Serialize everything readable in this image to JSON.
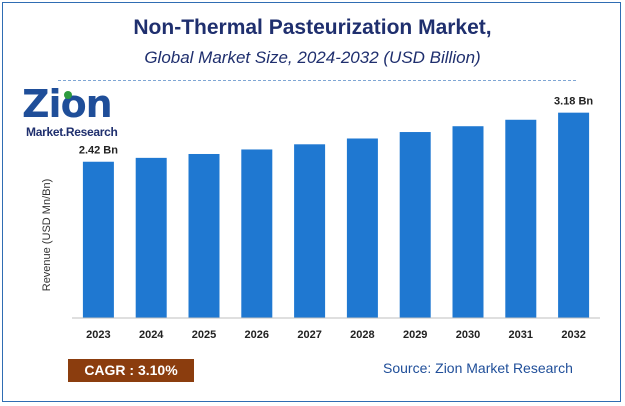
{
  "header": {
    "title": "Non-Thermal Pasteurization Market,",
    "subtitle": "Global Market Size, 2024-2032 (USD Billion)"
  },
  "logo": {
    "name": "Zion",
    "tagline": "Market.Research"
  },
  "footer": {
    "cagr": "CAGR :  3.10%",
    "source": "Source: Zion Market Research"
  },
  "colors": {
    "bar": "#1f78d1",
    "title": "#1f2f6e",
    "cagr_bg": "#8b3d0e"
  },
  "chart_data": {
    "type": "bar",
    "categories": [
      "2023",
      "2024",
      "2025",
      "2026",
      "2027",
      "2028",
      "2029",
      "2030",
      "2031",
      "2032"
    ],
    "values": [
      2.42,
      2.48,
      2.54,
      2.61,
      2.69,
      2.78,
      2.88,
      2.97,
      3.07,
      3.18
    ],
    "data_labels": [
      {
        "index": 0,
        "text": "2.42 Bn"
      },
      {
        "index": 9,
        "text": "3.18 Bn"
      }
    ],
    "ylabel": "Revenue (USD Mn/Bn)",
    "xlabel": "",
    "ylim": [
      0,
      3.5
    ],
    "grid": false,
    "legend": "none"
  }
}
